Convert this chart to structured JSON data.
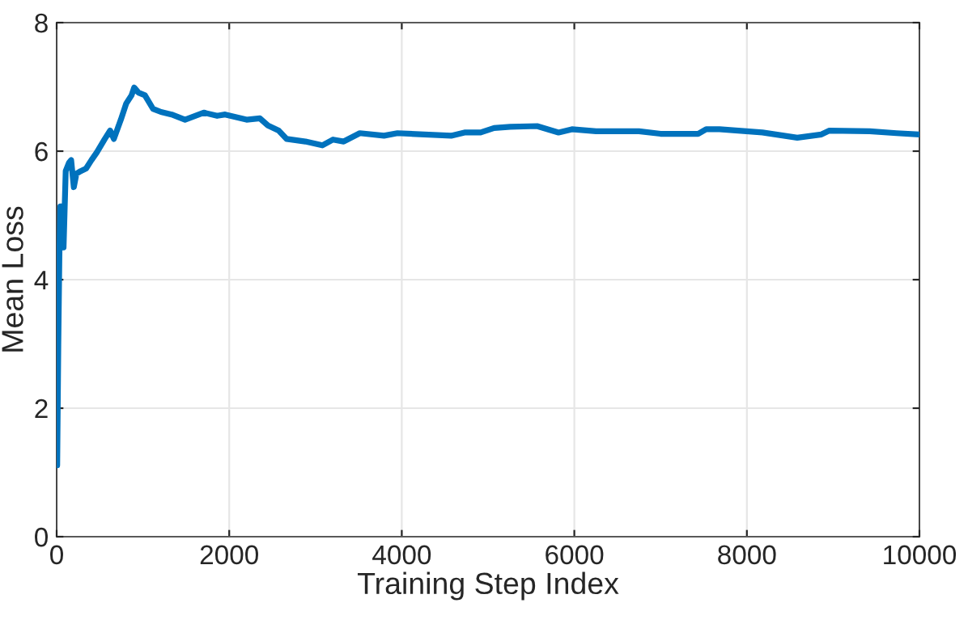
{
  "chart_data": {
    "type": "line",
    "xlabel": "Training Step Index",
    "ylabel": "Mean Loss",
    "xlim": [
      0,
      10000
    ],
    "ylim": [
      0,
      8
    ],
    "xticks": [
      0,
      2000,
      4000,
      6000,
      8000,
      10000
    ],
    "yticks": [
      0,
      2,
      4,
      6,
      8
    ],
    "grid": true,
    "line_style": "solid",
    "marker": "none",
    "series": [
      {
        "color": "#0072bd",
        "x": [
          6,
          19,
          31,
          43,
          68,
          80,
          105,
          143,
          168,
          199,
          229,
          279,
          341,
          403,
          465,
          558,
          620,
          663,
          744,
          806,
          868,
          899,
          949,
          1023,
          1116,
          1209,
          1333,
          1488,
          1705,
          1860,
          1953,
          2201,
          2356,
          2449,
          2573,
          2666,
          2883,
          3079,
          3204,
          3327,
          3514,
          3794,
          3950,
          4572,
          4727,
          4914,
          5070,
          5257,
          5568,
          5817,
          5972,
          6252,
          6749,
          7000,
          7435,
          7528,
          7683,
          8180,
          8584,
          8864,
          8957,
          9423,
          9734,
          10000
        ],
        "values": [
          1.11,
          3.0,
          4.34,
          5.14,
          5.14,
          4.5,
          5.69,
          5.82,
          5.86,
          5.44,
          5.65,
          5.69,
          5.73,
          5.86,
          5.98,
          6.19,
          6.32,
          6.19,
          6.49,
          6.74,
          6.87,
          6.99,
          6.91,
          6.87,
          6.66,
          6.61,
          6.57,
          6.49,
          6.6,
          6.55,
          6.57,
          6.49,
          6.51,
          6.4,
          6.32,
          6.19,
          6.15,
          6.09,
          6.18,
          6.15,
          6.28,
          6.24,
          6.28,
          6.24,
          6.29,
          6.29,
          6.36,
          6.38,
          6.39,
          6.29,
          6.34,
          6.31,
          6.31,
          6.27,
          6.27,
          6.34,
          6.34,
          6.29,
          6.21,
          6.26,
          6.32,
          6.31,
          6.28,
          6.26
        ]
      }
    ]
  }
}
